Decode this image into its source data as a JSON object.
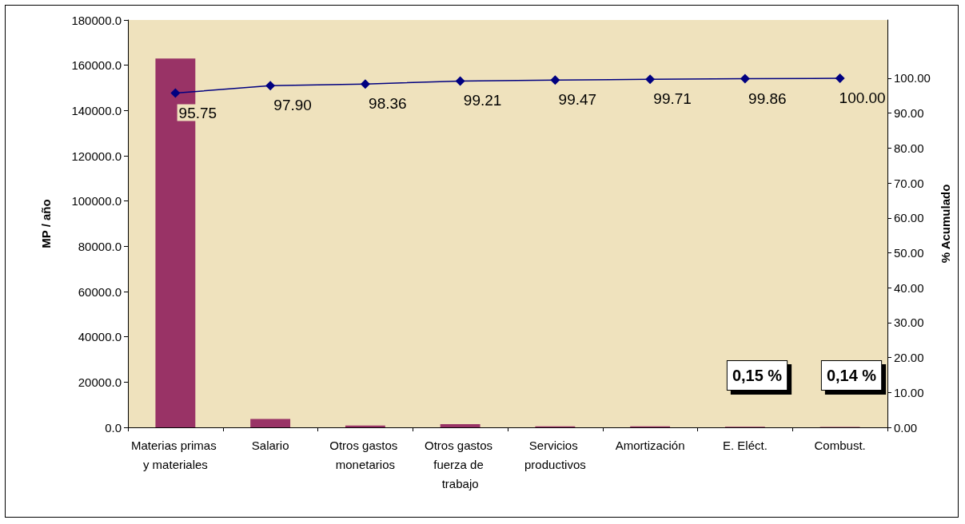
{
  "chart_data": {
    "type": "bar",
    "categories": [
      "Materias primas y materiales",
      "Salario",
      "Otros gastos monetarios",
      "Otros gastos fuerza de trabajo",
      "Servicios productivos",
      "Amortización",
      "E. Eléct.",
      "Combust."
    ],
    "ylabel": "MP / año",
    "y2label": "% Acumulado",
    "series": [
      {
        "color": "#993366",
        "values": [
          163000,
          3700,
          800,
          1400,
          400,
          400,
          300,
          200
        ]
      },
      {
        "type": "line",
        "axis": "y2",
        "color": "#000080",
        "marker": "diamond",
        "values": [
          95.75,
          97.9,
          98.36,
          99.21,
          99.47,
          99.71,
          99.86,
          100.0
        ],
        "value_labels": [
          "95.75",
          "97.90",
          "98.36",
          "99.21",
          "99.47",
          "99.71",
          "99.86",
          "100.00"
        ]
      }
    ],
    "ylim": [
      0,
      180000
    ],
    "yticks": [
      {
        "value": 0,
        "label": "0.0"
      },
      {
        "value": 20000,
        "label": "20000.0"
      },
      {
        "value": 40000,
        "label": "40000.0"
      },
      {
        "value": 60000,
        "label": "60000.0"
      },
      {
        "value": 80000,
        "label": "80000.0"
      },
      {
        "value": 100000,
        "label": "100000.0"
      },
      {
        "value": 120000,
        "label": "120000.0"
      },
      {
        "value": 140000,
        "label": "140000.0"
      },
      {
        "value": 160000,
        "label": "160000.0"
      },
      {
        "value": 180000,
        "label": "180000.0"
      }
    ],
    "y2lim": [
      0,
      116.7
    ],
    "y2ticks": [
      {
        "value": 0,
        "label": "0.00"
      },
      {
        "value": 10,
        "label": "10.00"
      },
      {
        "value": 20,
        "label": "20.00"
      },
      {
        "value": 30,
        "label": "30.00"
      },
      {
        "value": 40,
        "label": "40.00"
      },
      {
        "value": 50,
        "label": "50.00"
      },
      {
        "value": 60,
        "label": "60.00"
      },
      {
        "value": 70,
        "label": "70.00"
      },
      {
        "value": 80,
        "label": "80.00"
      },
      {
        "value": 90,
        "label": "90.00"
      },
      {
        "value": 100,
        "label": "100.00"
      }
    ],
    "annotations": [
      "0,15 %",
      "0,14 %"
    ],
    "grid": false
  }
}
